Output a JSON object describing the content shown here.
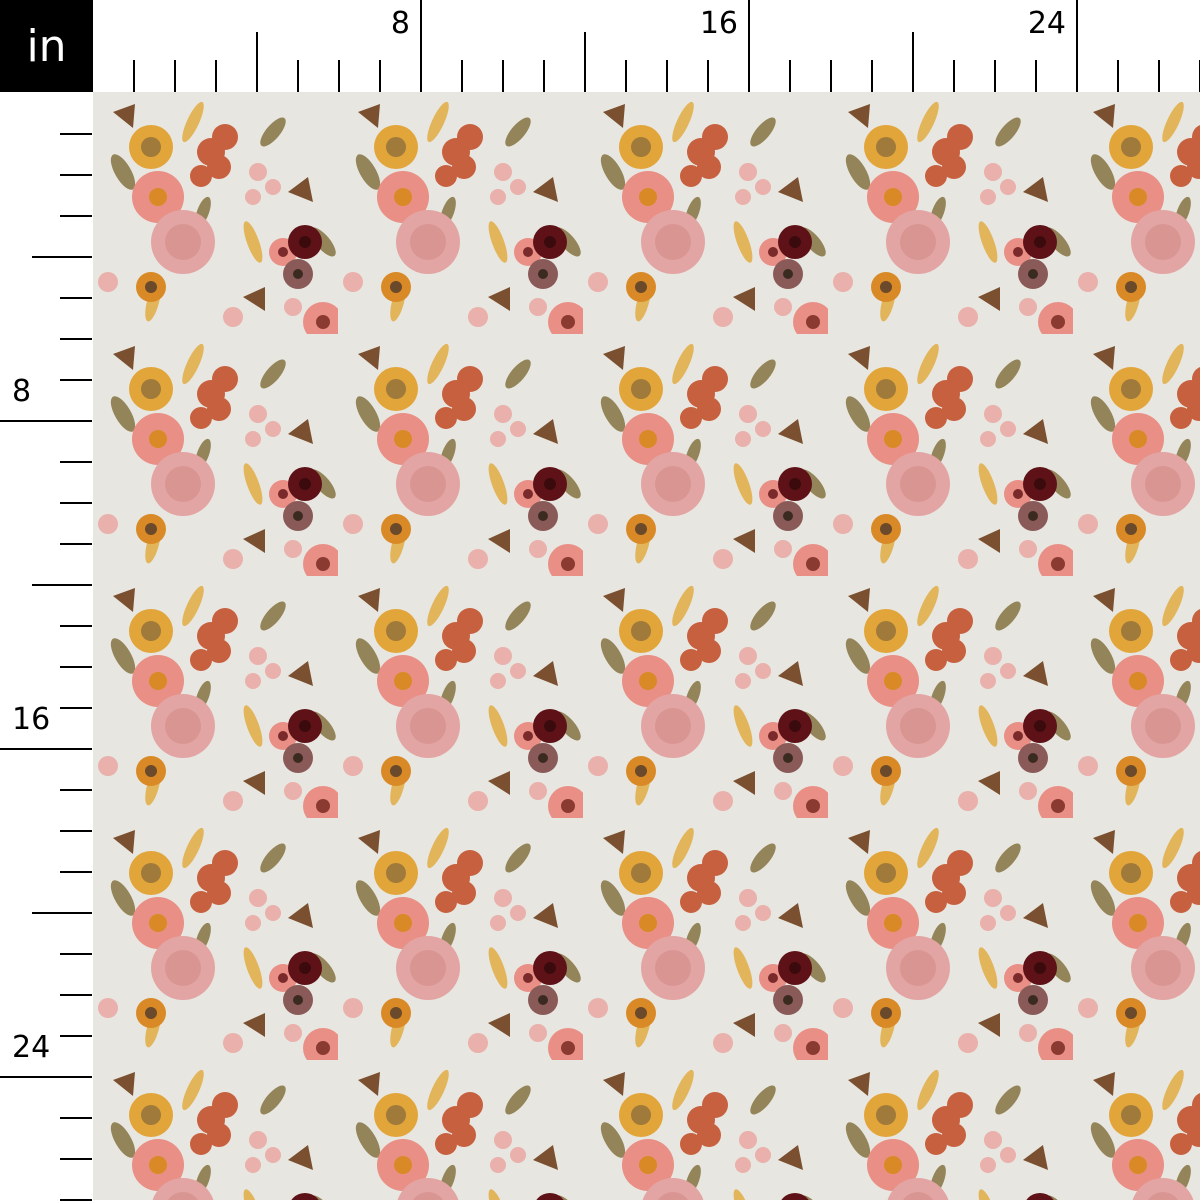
{
  "ruler": {
    "unit": "in",
    "top_labels": [
      "8",
      "16",
      "24"
    ],
    "left_labels": [
      "8",
      "16",
      "24"
    ]
  },
  "fabric": {
    "pattern": "embroidered floral",
    "colors": {
      "background": "#e8e6e0",
      "pink": "#e98f86",
      "light_pink": "#eab0ab",
      "rust": "#c7603e",
      "mustard": "#e2a53a",
      "burgundy": "#5e1218",
      "mauve": "#8a5a58",
      "olive": "#8a7a4a",
      "brown": "#7a5030"
    }
  }
}
